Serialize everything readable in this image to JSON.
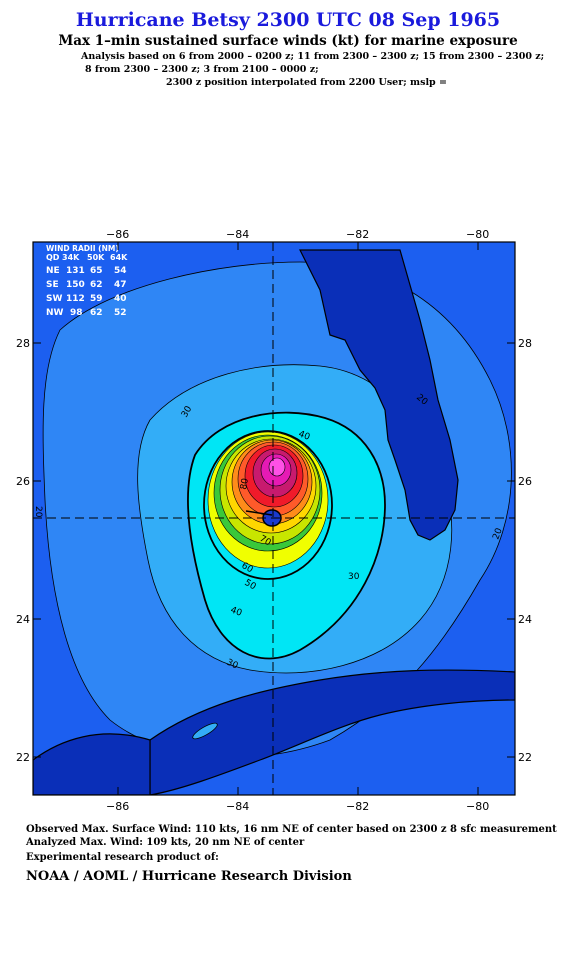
{
  "header": {
    "title": "Hurricane Betsy 2300 UTC 08 Sep 1965",
    "subtitle": "Max 1–min sustained surface winds (kt) for marine exposure",
    "analysis_line1": "Analysis based on  6 from 2000 – 0200 z;  11 from 2300 – 2300 z;  15 from 2300 – 2300 z;",
    "analysis_line2": "8 from 2300 – 2300 z;  3 from 2100 – 0000 z;",
    "analysis_line3": "2300 z position interpolated from 2200 User; mslp ="
  },
  "map": {
    "lon_ticks": [
      "−86",
      "−84",
      "−82",
      "−80"
    ],
    "lat_ticks": [
      "28",
      "26",
      "24",
      "22"
    ],
    "lon_range": [
      -87.4,
      -79.4
    ],
    "lat_range": [
      21.4,
      29.5
    ],
    "center": {
      "lon": -83.45,
      "lat": 25.45
    },
    "contour_labels": [
      "20",
      "20",
      "20",
      "30",
      "30",
      "30",
      "40",
      "40",
      "50",
      "60",
      "70",
      "80"
    ],
    "colors": {
      "ocean": "#1c5ff0",
      "outer": "#2f86f5",
      "mid": "#33adf7",
      "inner": "#00e6f5",
      "land": "#0a2fb8"
    }
  },
  "wind_radii": {
    "title": "WIND RADII (NM)",
    "header": [
      "QD",
      "34K",
      "50K",
      "64K"
    ],
    "rows": [
      [
        "NE",
        "131",
        "65",
        "54"
      ],
      [
        "SE",
        "150",
        "62",
        "47"
      ],
      [
        "SW",
        "112",
        "59",
        "40"
      ],
      [
        "NW",
        "98",
        "62",
        "52"
      ]
    ]
  },
  "footer": {
    "observed": "Observed Max. Surface Wind: 110 kts, 16 nm NE of center based on 2300 z 8 sfc measurement",
    "analyzed": "Analyzed Max. Wind: 109 kts, 20 nm NE of center",
    "experimental": "Experimental research product of:",
    "org": "NOAA / AOML / Hurricane Research Division"
  }
}
